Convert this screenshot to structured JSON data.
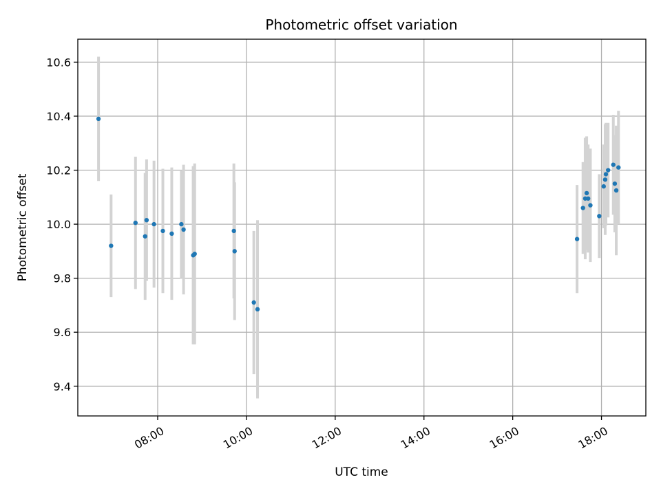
{
  "chart_data": {
    "type": "scatter",
    "title": "Photometric offset variation",
    "xlabel": "UTC time",
    "ylabel": "Photometric offset",
    "x_axis": {
      "type": "time",
      "min": "06:12",
      "max": "19:00",
      "ticks": [
        "08:00",
        "10:00",
        "12:00",
        "14:00",
        "16:00",
        "18:00"
      ]
    },
    "y_axis": {
      "min": 9.29,
      "max": 10.685,
      "ticks": [
        "9.4",
        "9.6",
        "9.8",
        "10.0",
        "10.2",
        "10.4",
        "10.6"
      ]
    },
    "grid": true,
    "colors": {
      "point": "#1f77b4",
      "errorbar": "#d3d3d3",
      "grid": "#b0b0b0"
    },
    "points": [
      {
        "x": "06:40",
        "y": 10.39,
        "yerr": 0.23
      },
      {
        "x": "06:57",
        "y": 9.92,
        "yerr": 0.19
      },
      {
        "x": "07:30",
        "y": 10.005,
        "yerr": 0.245
      },
      {
        "x": "07:43",
        "y": 9.955,
        "yerr": 0.235
      },
      {
        "x": "07:45",
        "y": 10.015,
        "yerr": 0.225
      },
      {
        "x": "07:55",
        "y": 10.0,
        "yerr": 0.235
      },
      {
        "x": "08:07",
        "y": 9.975,
        "yerr": 0.23
      },
      {
        "x": "08:19",
        "y": 9.965,
        "yerr": 0.245
      },
      {
        "x": "08:32",
        "y": 10.0,
        "yerr": 0.2
      },
      {
        "x": "08:35",
        "y": 9.98,
        "yerr": 0.24
      },
      {
        "x": "08:48",
        "y": 9.885,
        "yerr": 0.33
      },
      {
        "x": "08:50",
        "y": 9.89,
        "yerr": 0.335
      },
      {
        "x": "09:43",
        "y": 9.975,
        "yerr": 0.25
      },
      {
        "x": "09:44",
        "y": 9.9,
        "yerr": 0.255
      },
      {
        "x": "10:10",
        "y": 9.71,
        "yerr": 0.265
      },
      {
        "x": "10:15",
        "y": 9.685,
        "yerr": 0.33
      },
      {
        "x": "17:27",
        "y": 9.945,
        "yerr": 0.2
      },
      {
        "x": "17:35",
        "y": 10.06,
        "yerr": 0.17
      },
      {
        "x": "17:38",
        "y": 10.095,
        "yerr": 0.225
      },
      {
        "x": "17:40",
        "y": 10.115,
        "yerr": 0.21
      },
      {
        "x": "17:42",
        "y": 10.095,
        "yerr": 0.2
      },
      {
        "x": "17:45",
        "y": 10.07,
        "yerr": 0.21
      },
      {
        "x": "17:57",
        "y": 10.03,
        "yerr": 0.155
      },
      {
        "x": "18:03",
        "y": 10.14,
        "yerr": 0.155
      },
      {
        "x": "18:05",
        "y": 10.165,
        "yerr": 0.205
      },
      {
        "x": "18:06",
        "y": 10.185,
        "yerr": 0.19
      },
      {
        "x": "18:09",
        "y": 10.2,
        "yerr": 0.175
      },
      {
        "x": "18:16",
        "y": 10.22,
        "yerr": 0.185
      },
      {
        "x": "18:18",
        "y": 10.15,
        "yerr": 0.18
      },
      {
        "x": "18:20",
        "y": 10.125,
        "yerr": 0.24
      },
      {
        "x": "18:23",
        "y": 10.21,
        "yerr": 0.21
      }
    ]
  }
}
